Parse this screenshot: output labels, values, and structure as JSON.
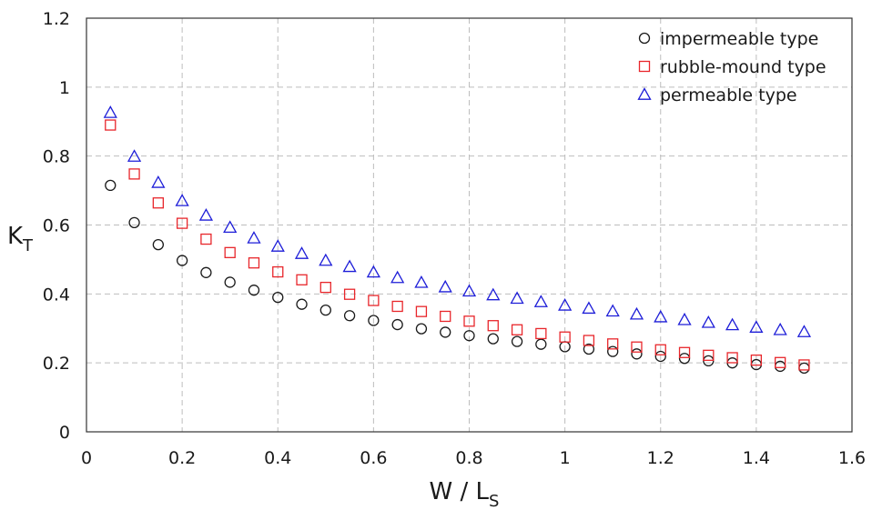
{
  "chart_data": {
    "type": "scatter",
    "title": "",
    "xlabel": {
      "main": "W / L",
      "sub": "S"
    },
    "ylabel": {
      "main": "K",
      "sub": "T"
    },
    "xlim": [
      0,
      1.6
    ],
    "ylim": [
      0,
      1.2
    ],
    "x_ticks": [
      "0",
      "0.2",
      "0.4",
      "0.6",
      "0.8",
      "1",
      "1.2",
      "1.4",
      "1.6"
    ],
    "y_ticks": [
      "0",
      "0.2",
      "0.4",
      "0.6",
      "0.8",
      "1",
      "1.2"
    ],
    "grid": true,
    "legend_position": "top-right",
    "x": [
      0.05,
      0.1,
      0.15,
      0.2,
      0.25,
      0.3,
      0.35,
      0.4,
      0.45,
      0.5,
      0.55,
      0.6,
      0.65,
      0.7,
      0.75,
      0.8,
      0.85,
      0.9,
      0.95,
      1.0,
      1.05,
      1.1,
      1.15,
      1.2,
      1.25,
      1.3,
      1.35,
      1.4,
      1.45,
      1.5
    ],
    "series": [
      {
        "name": "impermeable type",
        "marker": "circle",
        "color": "#1a1a1a",
        "values": [
          0.715,
          0.607,
          0.543,
          0.497,
          0.462,
          0.434,
          0.411,
          0.39,
          0.37,
          0.353,
          0.337,
          0.323,
          0.311,
          0.299,
          0.289,
          0.279,
          0.27,
          0.262,
          0.254,
          0.247,
          0.24,
          0.233,
          0.226,
          0.219,
          0.213,
          0.206,
          0.2,
          0.195,
          0.19,
          0.185
        ]
      },
      {
        "name": "rubble-mound type",
        "marker": "square",
        "color": "#e8262b",
        "values": [
          0.89,
          0.748,
          0.664,
          0.605,
          0.559,
          0.52,
          0.49,
          0.464,
          0.441,
          0.419,
          0.399,
          0.381,
          0.364,
          0.349,
          0.335,
          0.321,
          0.308,
          0.296,
          0.285,
          0.275,
          0.265,
          0.255,
          0.246,
          0.238,
          0.23,
          0.222,
          0.215,
          0.208,
          0.201,
          0.194
        ]
      },
      {
        "name": "permeable type",
        "marker": "triangle",
        "color": "#1d1dd8",
        "values": [
          0.926,
          0.799,
          0.723,
          0.67,
          0.628,
          0.593,
          0.562,
          0.538,
          0.517,
          0.497,
          0.479,
          0.463,
          0.447,
          0.433,
          0.42,
          0.408,
          0.397,
          0.387,
          0.377,
          0.367,
          0.358,
          0.35,
          0.341,
          0.333,
          0.325,
          0.317,
          0.31,
          0.303,
          0.296,
          0.29
        ]
      }
    ]
  }
}
